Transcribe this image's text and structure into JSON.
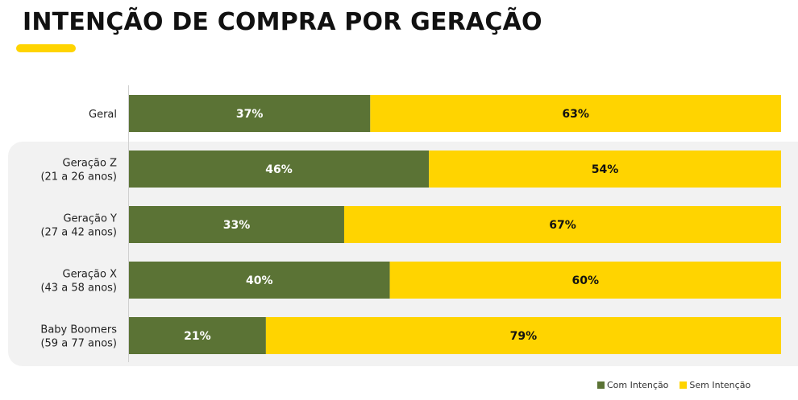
{
  "title": "INTENÇÃO DE COMPRA POR GERAÇÃO",
  "colors": {
    "com": "#5b7335",
    "sem": "#ffd400",
    "accent": "#ffd400",
    "panel": "#f2f2f2"
  },
  "chart_data": {
    "type": "bar",
    "orientation": "horizontal",
    "stacked": true,
    "categories": [
      [
        "Geral"
      ],
      [
        "Geração Z",
        "(21 a 26 anos)"
      ],
      [
        "Geração Y",
        "(27 a 42 anos)"
      ],
      [
        "Geração X",
        "(43 a 58 anos)"
      ],
      [
        "Baby Boomers",
        "(59 a 77 anos)"
      ]
    ],
    "series": [
      {
        "name": "Com Intenção",
        "values": [
          37,
          46,
          33,
          40,
          21
        ],
        "labels": [
          "37%",
          "46%",
          "33%",
          "40%",
          "21%"
        ]
      },
      {
        "name": "Sem Intenção",
        "values": [
          63,
          54,
          67,
          60,
          79
        ],
        "labels": [
          "63%",
          "54%",
          "67%",
          "60%",
          "79%"
        ]
      }
    ],
    "xlim": [
      0,
      100
    ],
    "legend": "bottom-right",
    "grid": false
  }
}
